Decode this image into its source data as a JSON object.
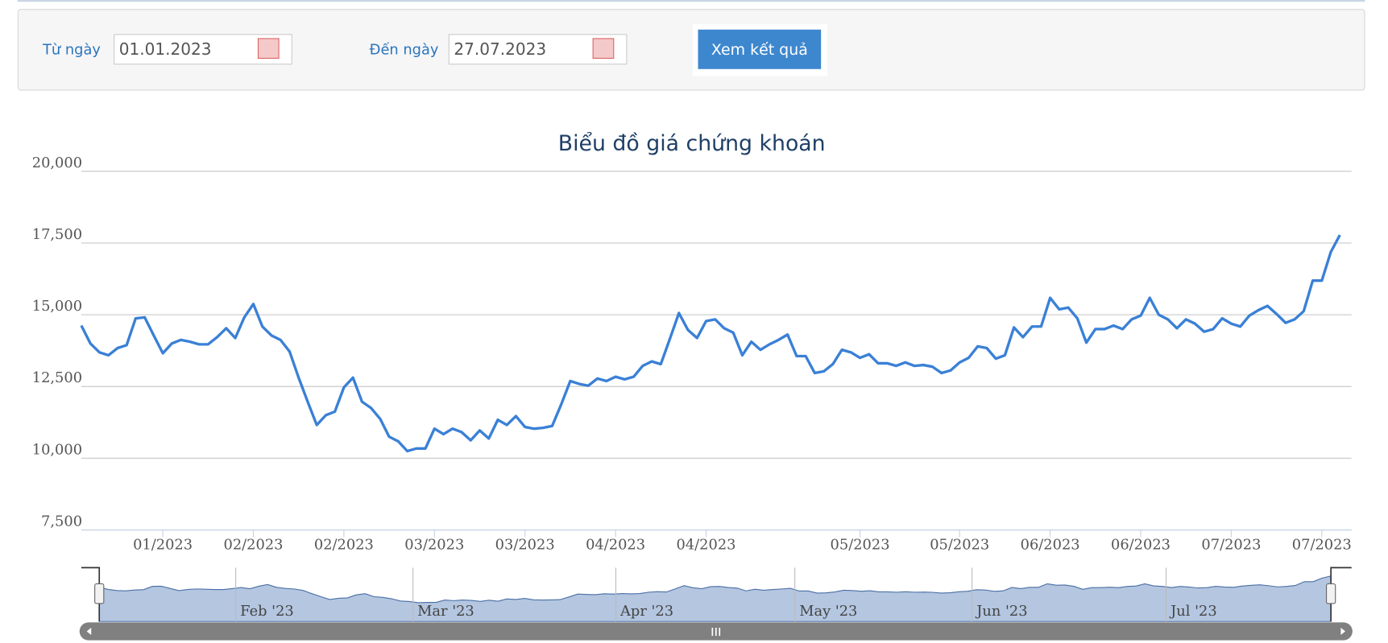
{
  "form": {
    "from_label": "Từ ngày",
    "from_value": "01.01.2023",
    "to_label": "Đến ngày",
    "to_value": "27.07.2023",
    "button": "Xem kết quả"
  },
  "chart_data": {
    "type": "line",
    "title": "Biểu đồ giá chứng khoán",
    "color": "#3a80d6",
    "grid": true,
    "values": [
      14625,
      14000,
      13690,
      13590,
      13840,
      13940,
      14875,
      14910,
      14280,
      13660,
      14000,
      14125,
      14060,
      13970,
      13970,
      14220,
      14530,
      14190,
      14910,
      15375,
      14590,
      14280,
      14125,
      13720,
      12810,
      11970,
      11160,
      11500,
      11625,
      12470,
      12810,
      11970,
      11750,
      11375,
      10750,
      10590,
      10250,
      10340,
      10340,
      11030,
      10840,
      11030,
      10910,
      10625,
      10970,
      10690,
      11340,
      11160,
      11470,
      11090,
      11030,
      11060,
      11125,
      11875,
      12690,
      12590,
      12530,
      12780,
      12690,
      12840,
      12750,
      12840,
      13220,
      13375,
      13280,
      14160,
      15060,
      14470,
      14190,
      14780,
      14840,
      14530,
      14375,
      13590,
      14060,
      13780,
      13970,
      14125,
      14310,
      13560,
      13560,
      12970,
      13030,
      13280,
      13780,
      13690,
      13500,
      13625,
      13310,
      13310,
      13220,
      13340,
      13220,
      13250,
      13190,
      12970,
      13060,
      13340,
      13500,
      13900,
      13840,
      13470,
      13590,
      14560,
      14220,
      14590,
      14590,
      15590,
      15190,
      15250,
      14875,
      14030,
      14500,
      14500,
      14625,
      14500,
      14840,
      14970,
      15590,
      15000,
      14840,
      14530,
      14840,
      14690,
      14410,
      14500,
      14875,
      14690,
      14590,
      14970,
      15160,
      15310,
      15030,
      14720,
      14840,
      15125,
      16190,
      16190,
      17190,
      17780
    ],
    "ylim": [
      7500,
      20000
    ],
    "yticks": [
      {
        "value": 7500,
        "label": "7,500"
      },
      {
        "value": 10000,
        "label": "10,000"
      },
      {
        "value": 12500,
        "label": "12,500"
      },
      {
        "value": 15000,
        "label": "15,000"
      },
      {
        "value": 17500,
        "label": "17,500"
      },
      {
        "value": 20000,
        "label": "20,000"
      }
    ],
    "xticks": [
      {
        "value": 9,
        "label": "01/2023"
      },
      {
        "value": 19,
        "label": "02/2023"
      },
      {
        "value": 29,
        "label": "02/2023"
      },
      {
        "value": 39,
        "label": "03/2023"
      },
      {
        "value": 49,
        "label": "03/2023"
      },
      {
        "value": 59,
        "label": "04/2023"
      },
      {
        "value": 69,
        "label": "04/2023"
      },
      {
        "value": 86,
        "label": "05/2023"
      },
      {
        "value": 97,
        "label": "05/2023"
      },
      {
        "value": 107,
        "label": "06/2023"
      },
      {
        "value": 117,
        "label": "06/2023"
      },
      {
        "value": 127,
        "label": "07/2023"
      },
      {
        "value": 137,
        "label": "07/2023"
      }
    ],
    "navigator_ticks": [
      {
        "value": 15.4,
        "label": "Feb '23"
      },
      {
        "value": 35.4,
        "label": "Mar '23"
      },
      {
        "value": 58.3,
        "label": "Apr '23"
      },
      {
        "value": 78.5,
        "label": "May '23"
      },
      {
        "value": 98.5,
        "label": "Jun '23"
      },
      {
        "value": 120.4,
        "label": "Jul '23"
      }
    ]
  }
}
